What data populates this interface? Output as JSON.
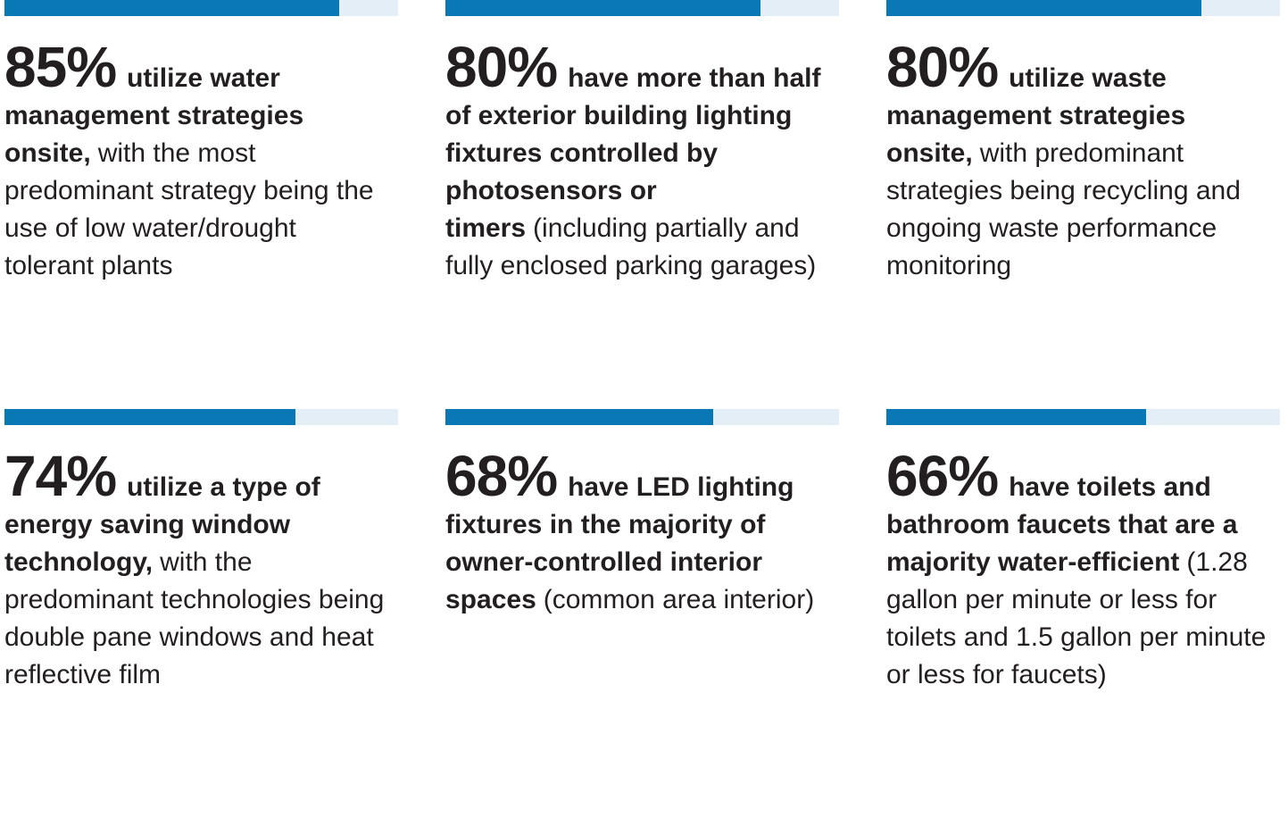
{
  "stats": [
    {
      "value": 85,
      "value_label": "85%",
      "bold": "utilize water management strategies onsite,",
      "text": "with the most predominant strategy being the use of low water/drought tolerant plants"
    },
    {
      "value": 80,
      "value_label": "80%",
      "bold": "have more than half of exterior building lighting fixtures controlled by photosensors or timers",
      "text": "(including partially and fully enclosed parking garages)"
    },
    {
      "value": 80,
      "value_label": "80%",
      "bold": "utilize waste management strategies onsite,",
      "text": "with predominant strategies being recycling and ongoing waste performance monitoring"
    },
    {
      "value": 74,
      "value_label": "74%",
      "bold": "utilize a type of energy saving window technology,",
      "text": "with the predominant technologies being double pane windows and heat reflective film"
    },
    {
      "value": 68,
      "value_label": "68%",
      "bold": "have LED lighting fixtures in the majority of owner-controlled interior spaces",
      "text": "(common area interior)"
    },
    {
      "value": 66,
      "value_label": "66%",
      "bold": "have toilets and bathroom faucets that are a majority water-efficient",
      "text": "(1.28 gallon per minute or less for toilets and 1.5 gallon per minute or less for faucets)"
    }
  ]
}
